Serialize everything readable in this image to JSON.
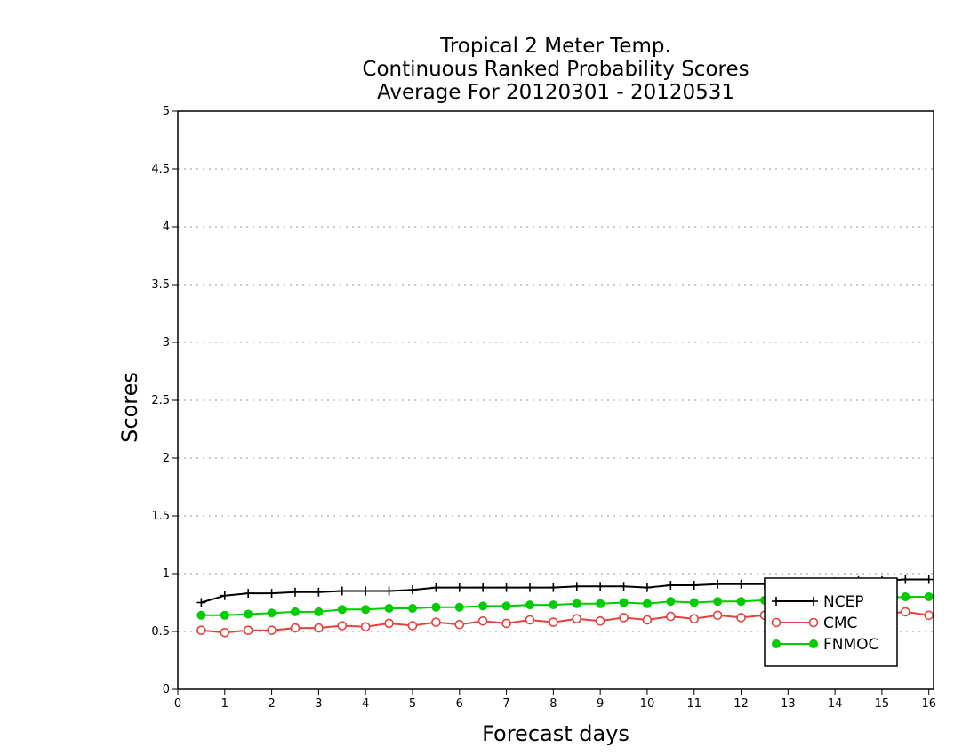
{
  "chart_data": {
    "type": "line",
    "title_lines": [
      "Tropical 2 Meter Temp.",
      "Continuous Ranked Probability Scores",
      "Average For 20120301 - 20120531"
    ],
    "xlabel": "Forecast days",
    "ylabel": "Scores",
    "xlim": [
      0,
      16.1
    ],
    "ylim": [
      0,
      5
    ],
    "x_ticks": [
      "0",
      "1",
      "2",
      "3",
      "4",
      "5",
      "6",
      "7",
      "8",
      "9",
      "10",
      "11",
      "12",
      "13",
      "14",
      "15",
      "16"
    ],
    "y_ticks": [
      "0",
      "0.5",
      "1",
      "1.5",
      "2",
      "2.5",
      "3",
      "3.5",
      "4",
      "4.5",
      "5"
    ],
    "grid": true,
    "legend_position": "bottom-right",
    "x": [
      0.5,
      1,
      1.5,
      2,
      2.5,
      3,
      3.5,
      4,
      4.5,
      5,
      5.5,
      6,
      6.5,
      7,
      7.5,
      8,
      8.5,
      9,
      9.5,
      10,
      10.5,
      11,
      11.5,
      12,
      12.5,
      13,
      13.5,
      14,
      14.5,
      15,
      15.5,
      16
    ],
    "series": [
      {
        "name": "NCEP",
        "color": "#000000",
        "marker": "plus",
        "values": [
          0.75,
          0.81,
          0.83,
          0.83,
          0.84,
          0.84,
          0.85,
          0.85,
          0.85,
          0.86,
          0.88,
          0.88,
          0.88,
          0.88,
          0.88,
          0.88,
          0.89,
          0.89,
          0.89,
          0.88,
          0.9,
          0.9,
          0.91,
          0.91,
          0.91,
          0.92,
          0.92,
          0.93,
          0.94,
          0.94,
          0.95,
          0.95
        ]
      },
      {
        "name": "CMC",
        "color": "#e8403a",
        "marker": "open-circle",
        "values": [
          0.51,
          0.49,
          0.51,
          0.51,
          0.53,
          0.53,
          0.55,
          0.54,
          0.57,
          0.55,
          0.58,
          0.56,
          0.59,
          0.57,
          0.6,
          0.58,
          0.61,
          0.59,
          0.62,
          0.6,
          0.63,
          0.61,
          0.64,
          0.62,
          0.64,
          0.63,
          0.65,
          0.64,
          0.66,
          0.65,
          0.67,
          0.64
        ]
      },
      {
        "name": "FNMOC",
        "color": "#00cc00",
        "marker": "filled-circle",
        "values": [
          0.64,
          0.64,
          0.65,
          0.66,
          0.67,
          0.67,
          0.69,
          0.69,
          0.7,
          0.7,
          0.71,
          0.71,
          0.72,
          0.72,
          0.73,
          0.73,
          0.74,
          0.74,
          0.75,
          0.74,
          0.76,
          0.75,
          0.76,
          0.76,
          0.77,
          0.77,
          0.78,
          0.78,
          0.79,
          0.79,
          0.8,
          0.8
        ]
      }
    ]
  }
}
